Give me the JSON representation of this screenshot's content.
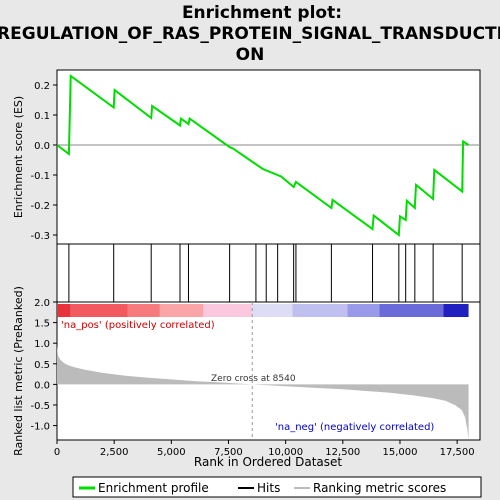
{
  "title_lines": [
    "Enrichment plot:",
    "REGULATION_OF_RAS_PROTEIN_SIGNAL_TRANSDUCTI",
    "ON"
  ],
  "colors": {
    "background": "#e8e8e8",
    "plot_bg": "#ffffff",
    "es_line": "#00dd00",
    "hits": "#000000",
    "metric_fill": "#bbbbbb",
    "zero_cross_line": "#999999",
    "pos_label": "#cc0000",
    "neg_label": "#0000cc"
  },
  "chart_data": {
    "type": "line",
    "xlabel": "Rank in Ordered Dataset",
    "xlim": [
      0,
      18500
    ],
    "xticks": [
      0,
      2500,
      5000,
      7500,
      10000,
      12500,
      15000,
      17500
    ],
    "xtick_labels": [
      "0",
      "2,500",
      "5,000",
      "7,500",
      "10,000",
      "12,500",
      "15,000",
      "17,500"
    ],
    "es_panel": {
      "ylabel": "Enrichment score (ES)",
      "ylim": [
        -0.33,
        0.25
      ],
      "yticks": [
        -0.3,
        -0.2,
        -0.1,
        0.0,
        0.1,
        0.2
      ],
      "ytick_labels": [
        "-0.3",
        "-0.2",
        "-0.1",
        "0.0",
        "0.1",
        "0.2"
      ],
      "series": [
        {
          "name": "Enrichment profile",
          "x": [
            0,
            520,
            560,
            600,
            2480,
            2520,
            4120,
            4160,
            5380,
            5420,
            5750,
            5800,
            7550,
            7700,
            9000,
            9800,
            10350,
            10450,
            12000,
            12050,
            13800,
            13850,
            14950,
            15000,
            15250,
            15300,
            15650,
            15700,
            16450,
            16500,
            17720,
            17760,
            18000
          ],
          "y": [
            0.0,
            -0.03,
            0.1,
            0.23,
            0.125,
            0.183,
            0.09,
            0.13,
            0.065,
            0.088,
            0.07,
            0.088,
            -0.007,
            -0.012,
            -0.08,
            -0.105,
            -0.14,
            -0.123,
            -0.21,
            -0.183,
            -0.28,
            -0.235,
            -0.3,
            -0.238,
            -0.25,
            -0.186,
            -0.21,
            -0.133,
            -0.18,
            -0.083,
            -0.155,
            0.012,
            0.0
          ]
        }
      ],
      "legend": [
        "Enrichment profile",
        "Hits",
        "Ranking metric scores"
      ]
    },
    "hits": [
      520,
      2480,
      4120,
      5380,
      5750,
      7550,
      8700,
      9150,
      9650,
      10350,
      10450,
      12000,
      13800,
      14950,
      15250,
      15650,
      16450,
      17720
    ],
    "metric_panel": {
      "ylabel": "Ranked list metric (PreRanked)",
      "ylim": [
        -1.35,
        2.0
      ],
      "yticks": [
        2.0,
        1.5,
        1.0,
        0.5,
        0.0,
        -0.5,
        -1.0
      ],
      "ytick_labels": [
        "2.0",
        "1.5",
        "1.0",
        "0.5",
        "0.0",
        "-0.5",
        "-1.0"
      ],
      "profile_x": [
        0,
        50,
        150,
        300,
        500,
        800,
        1200,
        2000,
        3000,
        4000,
        5000,
        6000,
        7000,
        8000,
        8540,
        9500,
        10500,
        11500,
        12500,
        13500,
        14500,
        15500,
        16500,
        17000,
        17400,
        17700,
        17850,
        17950,
        18000
      ],
      "profile_y": [
        0.95,
        0.7,
        0.6,
        0.52,
        0.46,
        0.41,
        0.36,
        0.28,
        0.21,
        0.16,
        0.12,
        0.08,
        0.05,
        0.02,
        0.0,
        -0.03,
        -0.06,
        -0.09,
        -0.12,
        -0.16,
        -0.2,
        -0.26,
        -0.34,
        -0.4,
        -0.5,
        -0.62,
        -0.8,
        -1.1,
        -1.35
      ],
      "zero_cross_rank": 8540,
      "zero_cross_label": "Zero cross at 8540",
      "pos_label": "'na_pos' (positively correlated)",
      "neg_label": "'na_neg' (negatively correlated)"
    },
    "color_bar": {
      "x_breaks": [
        0,
        600,
        3100,
        4500,
        6400,
        8540,
        10300,
        12700,
        14100,
        16900,
        18000
      ],
      "colors": [
        "#e8323c",
        "#f25a60",
        "#f77a7e",
        "#fba5a8",
        "#fcc8e0",
        "#ddddf5",
        "#c0c0f0",
        "#9a9aea",
        "#6a6ad8",
        "#2020c0"
      ]
    }
  }
}
